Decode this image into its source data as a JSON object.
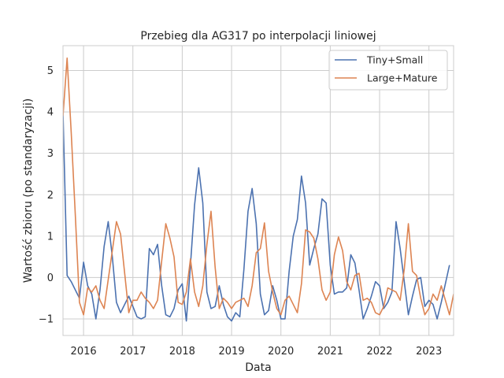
{
  "chart_data": {
    "type": "line",
    "title": "Przebieg dla AG317 po interpolacji liniowej",
    "xlabel": "Data",
    "ylabel": "Wartość zbioru (po standaryzacji)",
    "x_start": "2015-08",
    "x_step": "month",
    "xlim": [
      "2015-08",
      "2023-07"
    ],
    "ylim": [
      -1.4,
      5.6
    ],
    "x_ticks": [
      {
        "date": "2016-01",
        "label": "2016"
      },
      {
        "date": "2017-01",
        "label": "2017"
      },
      {
        "date": "2018-01",
        "label": "2018"
      },
      {
        "date": "2019-01",
        "label": "2019"
      },
      {
        "date": "2020-01",
        "label": "2020"
      },
      {
        "date": "2021-01",
        "label": "2021"
      },
      {
        "date": "2022-01",
        "label": "2022"
      },
      {
        "date": "2023-01",
        "label": "2023"
      }
    ],
    "y_ticks": [
      {
        "value": -1,
        "label": "−1"
      },
      {
        "value": 0,
        "label": "0"
      },
      {
        "value": 1,
        "label": "1"
      },
      {
        "value": 2,
        "label": "2"
      },
      {
        "value": 3,
        "label": "3"
      },
      {
        "value": 4,
        "label": "4"
      },
      {
        "value": 5,
        "label": "5"
      }
    ],
    "grid": true,
    "legend": "top-right",
    "series": [
      {
        "name": "Tiny+Small",
        "color": "#4c72b0",
        "values": [
          4.0,
          0.05,
          -0.1,
          -0.3,
          -0.5,
          0.37,
          -0.2,
          -0.4,
          -1.0,
          -0.3,
          0.75,
          1.35,
          0.5,
          -0.6,
          -0.85,
          -0.65,
          -0.45,
          -0.7,
          -0.95,
          -1.0,
          -0.95,
          0.7,
          0.55,
          0.8,
          -0.2,
          -0.9,
          -0.95,
          -0.75,
          -0.3,
          -0.15,
          -1.05,
          0.3,
          1.75,
          2.65,
          1.8,
          -0.35,
          -0.75,
          -0.7,
          -0.2,
          -0.65,
          -0.95,
          -1.05,
          -0.85,
          -0.95,
          0.2,
          1.6,
          2.15,
          1.3,
          -0.4,
          -0.9,
          -0.8,
          -0.2,
          -0.55,
          -1.0,
          -1.0,
          0.15,
          1.0,
          1.4,
          2.45,
          1.8,
          0.3,
          0.7,
          1.05,
          1.9,
          1.8,
          0.3,
          -0.4,
          -0.35,
          -0.35,
          -0.25,
          0.55,
          0.35,
          -0.3,
          -1.0,
          -0.75,
          -0.45,
          -0.1,
          -0.2,
          -0.75,
          -0.6,
          -0.35,
          1.35,
          0.7,
          -0.1,
          -0.9,
          -0.45,
          -0.05,
          0.0,
          -0.7,
          -0.55,
          -0.65,
          -1.0,
          -0.6,
          -0.15,
          0.3
        ]
      },
      {
        "name": "Large+Mature",
        "color": "#dd8452",
        "values": [
          3.9,
          5.3,
          3.5,
          1.5,
          -0.6,
          -0.9,
          -0.25,
          -0.35,
          -0.2,
          -0.55,
          -0.75,
          -0.05,
          0.65,
          1.35,
          1.05,
          0.1,
          -0.85,
          -0.55,
          -0.55,
          -0.35,
          -0.5,
          -0.6,
          -0.75,
          -0.55,
          0.4,
          1.3,
          0.95,
          0.5,
          -0.6,
          -0.65,
          -0.35,
          0.45,
          -0.35,
          -0.7,
          -0.2,
          0.8,
          1.6,
          0.25,
          -0.75,
          -0.5,
          -0.6,
          -0.75,
          -0.6,
          -0.55,
          -0.5,
          -0.7,
          -0.2,
          0.6,
          0.7,
          1.32,
          0.15,
          -0.35,
          -0.75,
          -0.9,
          -0.55,
          -0.45,
          -0.65,
          -0.85,
          -0.15,
          1.15,
          1.1,
          0.95,
          0.45,
          -0.3,
          -0.55,
          -0.35,
          0.55,
          0.98,
          0.65,
          -0.1,
          -0.3,
          0.05,
          0.1,
          -0.55,
          -0.5,
          -0.6,
          -0.85,
          -0.9,
          -0.7,
          -0.25,
          -0.3,
          -0.35,
          -0.55,
          0.2,
          1.3,
          0.15,
          0.05,
          -0.5,
          -0.9,
          -0.75,
          -0.4,
          -0.55,
          -0.2,
          -0.55,
          -0.9,
          -0.4
        ]
      }
    ]
  }
}
